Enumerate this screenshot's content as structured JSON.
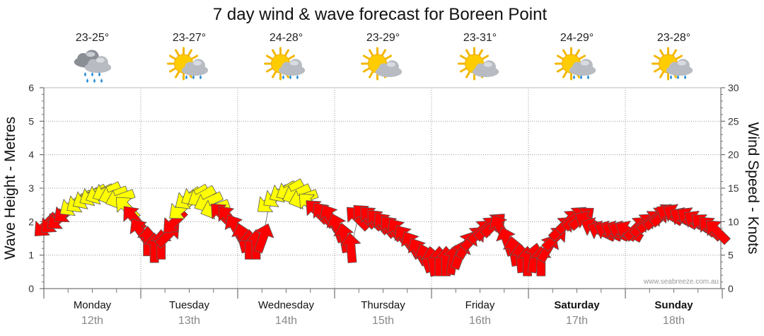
{
  "title": "7 day wind & wave forecast for Boreen Point",
  "credit": "www.seabreeze.com.au",
  "colors": {
    "strong": "#ff0000",
    "moderate": "#ffff00",
    "outline": "#5a5a5a",
    "line": "#777777",
    "grid": "#9a9a9a"
  },
  "days": [
    {
      "name": "Monday",
      "date": "12th",
      "temp": "23-25°",
      "icon": "rain-cloud-icon",
      "bold": false
    },
    {
      "name": "Tuesday",
      "date": "13th",
      "temp": "23-27°",
      "icon": "sun-cloud-rain-icon",
      "bold": false
    },
    {
      "name": "Wednesday",
      "date": "14th",
      "temp": "24-28°",
      "icon": "sun-cloud-rain-icon",
      "bold": false
    },
    {
      "name": "Thursday",
      "date": "15th",
      "temp": "23-29°",
      "icon": "sun-cloud-icon",
      "bold": false
    },
    {
      "name": "Friday",
      "date": "16th",
      "temp": "23-31°",
      "icon": "sun-cloud-icon",
      "bold": false
    },
    {
      "name": "Saturday",
      "date": "17th",
      "temp": "24-29°",
      "icon": "sun-cloud-rain-icon",
      "bold": true
    },
    {
      "name": "Sunday",
      "date": "18th",
      "temp": "23-28°",
      "icon": "sun-cloud-rain-icon",
      "bold": true
    }
  ],
  "chart_data": {
    "type": "line",
    "title": "7 day wind & wave forecast for Boreen Point",
    "ylabel_left": "Wave Height - Metres",
    "ylabel_right": "Wind Speed - Knots",
    "ylim_left": [
      0,
      6
    ],
    "ylim_right": [
      0,
      30
    ],
    "yticks_left": [
      0,
      1,
      2,
      3,
      4,
      5,
      6
    ],
    "yticks_right": [
      0,
      5,
      10,
      15,
      20,
      25,
      30
    ],
    "grid": true,
    "series": [
      {
        "name": "Wind Speed",
        "unit": "knots",
        "points": [
          {
            "day": 0.02,
            "knots": 9.5,
            "dir": 225
          },
          {
            "day": 0.09,
            "knots": 10.0,
            "dir": 225
          },
          {
            "day": 0.16,
            "knots": 10.5,
            "dir": 230
          },
          {
            "day": 0.23,
            "knots": 11.5,
            "dir": 230
          },
          {
            "day": 0.3,
            "knots": 12.5,
            "dir": 235
          },
          {
            "day": 0.37,
            "knots": 13.0,
            "dir": 235
          },
          {
            "day": 0.44,
            "knots": 13.5,
            "dir": 240
          },
          {
            "day": 0.51,
            "knots": 14.0,
            "dir": 240
          },
          {
            "day": 0.58,
            "knots": 14.2,
            "dir": 245
          },
          {
            "day": 0.65,
            "knots": 14.5,
            "dir": 245
          },
          {
            "day": 0.72,
            "knots": 14.0,
            "dir": 250
          },
          {
            "day": 0.79,
            "knots": 13.5,
            "dir": 250
          },
          {
            "day": 0.86,
            "knots": 12.0,
            "dir": 315
          },
          {
            "day": 0.93,
            "knots": 10.5,
            "dir": 320
          },
          {
            "day": 1.0,
            "knots": 8.5,
            "dir": 325
          },
          {
            "day": 1.07,
            "knots": 7.0,
            "dir": 0
          },
          {
            "day": 1.14,
            "knots": 6.0,
            "dir": 0
          },
          {
            "day": 1.21,
            "knots": 6.5,
            "dir": 0
          },
          {
            "day": 1.28,
            "knots": 8.0,
            "dir": 45
          },
          {
            "day": 1.35,
            "knots": 10.0,
            "dir": 225
          },
          {
            "day": 1.42,
            "knots": 12.0,
            "dir": 230
          },
          {
            "day": 1.49,
            "knots": 13.5,
            "dir": 235
          },
          {
            "day": 1.56,
            "knots": 14.0,
            "dir": 240
          },
          {
            "day": 1.63,
            "knots": 13.8,
            "dir": 240
          },
          {
            "day": 1.7,
            "knots": 13.0,
            "dir": 245
          },
          {
            "day": 1.77,
            "knots": 12.0,
            "dir": 250
          },
          {
            "day": 1.84,
            "knots": 11.0,
            "dir": 315
          },
          {
            "day": 1.91,
            "knots": 10.5,
            "dir": 320
          },
          {
            "day": 1.98,
            "knots": 9.0,
            "dir": 330
          },
          {
            "day": 2.05,
            "knots": 7.5,
            "dir": 345
          },
          {
            "day": 2.12,
            "knots": 6.5,
            "dir": 0
          },
          {
            "day": 2.19,
            "knots": 6.5,
            "dir": 0
          },
          {
            "day": 2.26,
            "knots": 7.5,
            "dir": 20
          },
          {
            "day": 2.33,
            "knots": 13.0,
            "dir": 230
          },
          {
            "day": 2.4,
            "knots": 13.8,
            "dir": 235
          },
          {
            "day": 2.47,
            "knots": 14.5,
            "dir": 240
          },
          {
            "day": 2.54,
            "knots": 14.8,
            "dir": 240
          },
          {
            "day": 2.61,
            "knots": 14.2,
            "dir": 245
          },
          {
            "day": 2.68,
            "knots": 13.5,
            "dir": 250
          },
          {
            "day": 2.75,
            "knots": 12.5,
            "dir": 315
          },
          {
            "day": 2.82,
            "knots": 11.5,
            "dir": 315
          },
          {
            "day": 2.89,
            "knots": 11.0,
            "dir": 320
          },
          {
            "day": 2.96,
            "knots": 10.5,
            "dir": 330
          },
          {
            "day": 3.03,
            "knots": 9.0,
            "dir": 340
          },
          {
            "day": 3.1,
            "knots": 7.5,
            "dir": 350
          },
          {
            "day": 3.17,
            "knots": 6.0,
            "dir": 355
          },
          {
            "day": 3.24,
            "knots": 10.5,
            "dir": 315
          },
          {
            "day": 3.31,
            "knots": 10.8,
            "dir": 315
          },
          {
            "day": 3.38,
            "knots": 10.5,
            "dir": 315
          },
          {
            "day": 3.45,
            "knots": 10.0,
            "dir": 318
          },
          {
            "day": 3.52,
            "knots": 9.5,
            "dir": 320
          },
          {
            "day": 3.59,
            "knots": 9.0,
            "dir": 320
          },
          {
            "day": 3.66,
            "knots": 8.5,
            "dir": 325
          },
          {
            "day": 3.73,
            "knots": 7.5,
            "dir": 325
          },
          {
            "day": 3.8,
            "knots": 6.5,
            "dir": 330
          },
          {
            "day": 3.87,
            "knots": 5.5,
            "dir": 330
          },
          {
            "day": 3.94,
            "knots": 4.5,
            "dir": 340
          },
          {
            "day": 4.01,
            "knots": 4.0,
            "dir": 350
          },
          {
            "day": 4.08,
            "knots": 4.0,
            "dir": 0
          },
          {
            "day": 4.15,
            "knots": 4.0,
            "dir": 0
          },
          {
            "day": 4.22,
            "knots": 4.2,
            "dir": 10
          },
          {
            "day": 4.29,
            "knots": 5.0,
            "dir": 20
          },
          {
            "day": 4.36,
            "knots": 6.5,
            "dir": 30
          },
          {
            "day": 4.43,
            "knots": 7.5,
            "dir": 45
          },
          {
            "day": 4.5,
            "knots": 8.5,
            "dir": 45
          },
          {
            "day": 4.57,
            "knots": 9.0,
            "dir": 45
          },
          {
            "day": 4.64,
            "knots": 9.5,
            "dir": 45
          },
          {
            "day": 4.71,
            "knots": 9.0,
            "dir": 330
          },
          {
            "day": 4.78,
            "knots": 7.0,
            "dir": 340
          },
          {
            "day": 4.85,
            "knots": 5.5,
            "dir": 350
          },
          {
            "day": 4.92,
            "knots": 4.5,
            "dir": 355
          },
          {
            "day": 4.99,
            "knots": 4.0,
            "dir": 0
          },
          {
            "day": 5.06,
            "knots": 4.5,
            "dir": 10
          },
          {
            "day": 5.13,
            "knots": 4.0,
            "dir": 0
          },
          {
            "day": 5.2,
            "knots": 6.0,
            "dir": 30
          },
          {
            "day": 5.27,
            "knots": 7.5,
            "dir": 45
          },
          {
            "day": 5.34,
            "knots": 9.0,
            "dir": 45
          },
          {
            "day": 5.41,
            "knots": 10.0,
            "dir": 45
          },
          {
            "day": 5.48,
            "knots": 10.5,
            "dir": 45
          },
          {
            "day": 5.55,
            "knots": 10.5,
            "dir": 50
          },
          {
            "day": 5.62,
            "knots": 10.0,
            "dir": 300
          },
          {
            "day": 5.69,
            "knots": 9.0,
            "dir": 295
          },
          {
            "day": 5.76,
            "knots": 8.5,
            "dir": 295
          },
          {
            "day": 5.83,
            "knots": 8.5,
            "dir": 295
          },
          {
            "day": 5.9,
            "knots": 8.5,
            "dir": 295
          },
          {
            "day": 5.97,
            "knots": 8.5,
            "dir": 295
          },
          {
            "day": 6.04,
            "knots": 8.5,
            "dir": 300
          },
          {
            "day": 6.11,
            "knots": 9.0,
            "dir": 45
          },
          {
            "day": 6.18,
            "knots": 9.5,
            "dir": 45
          },
          {
            "day": 6.25,
            "knots": 10.0,
            "dir": 50
          },
          {
            "day": 6.32,
            "knots": 10.5,
            "dir": 50
          },
          {
            "day": 6.39,
            "knots": 11.0,
            "dir": 50
          },
          {
            "day": 6.46,
            "knots": 11.0,
            "dir": 300
          },
          {
            "day": 6.53,
            "knots": 11.0,
            "dir": 300
          },
          {
            "day": 6.6,
            "knots": 10.5,
            "dir": 300
          },
          {
            "day": 6.67,
            "knots": 10.5,
            "dir": 305
          },
          {
            "day": 6.74,
            "knots": 10.0,
            "dir": 305
          },
          {
            "day": 6.81,
            "knots": 9.5,
            "dir": 310
          },
          {
            "day": 6.88,
            "knots": 9.0,
            "dir": 315
          },
          {
            "day": 6.95,
            "knots": 8.5,
            "dir": 315
          }
        ]
      }
    ]
  }
}
